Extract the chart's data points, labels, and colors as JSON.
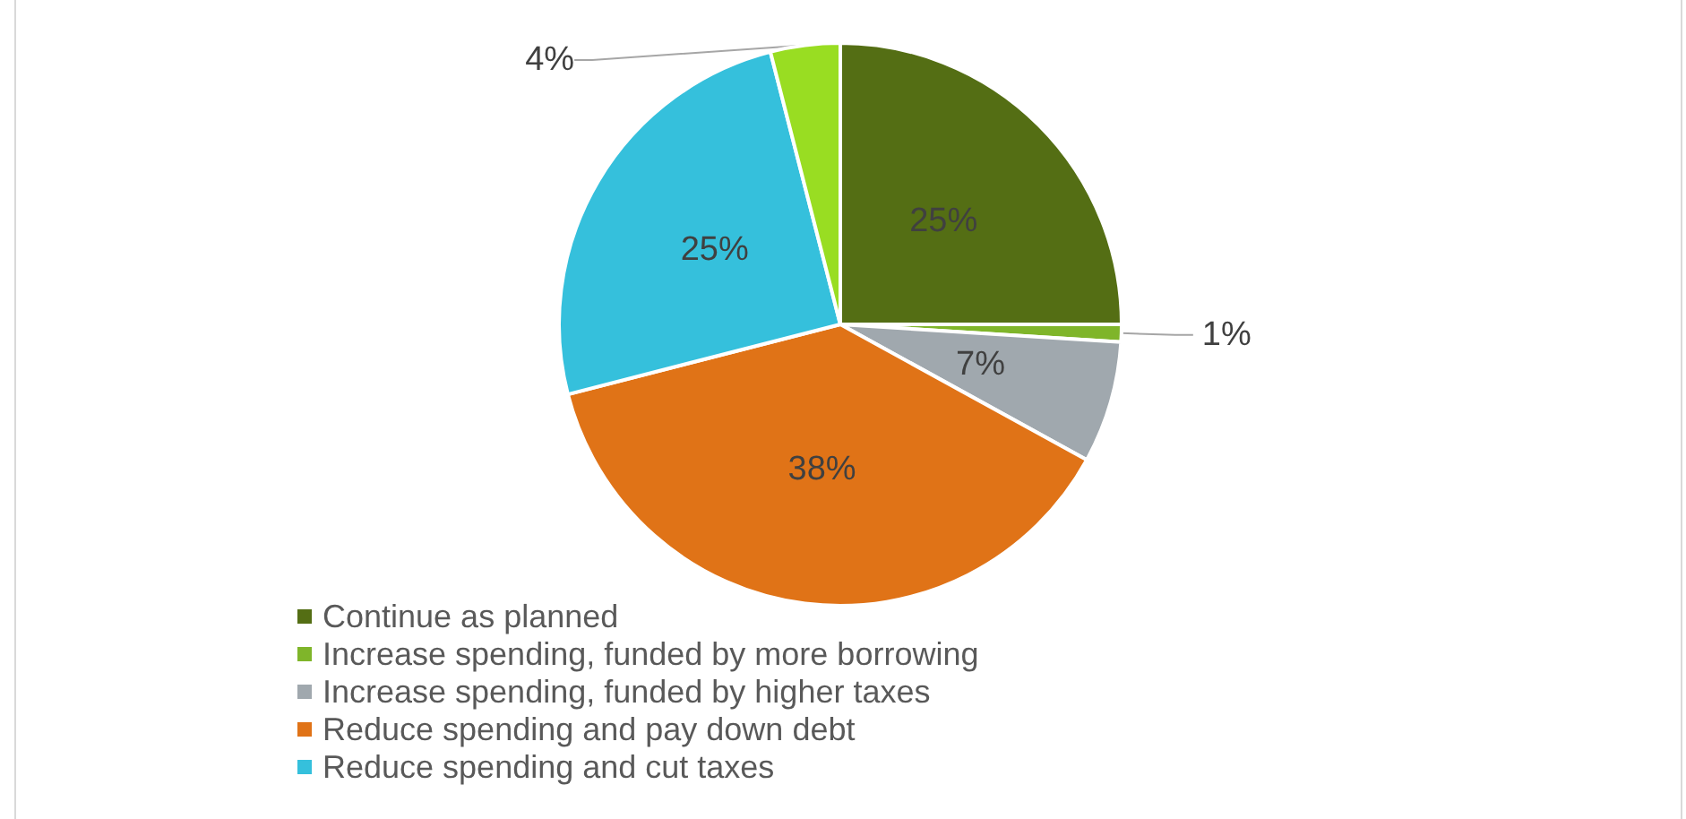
{
  "chart_data": {
    "type": "pie",
    "categories": [
      "Continue as planned",
      "Increase spending, funded by more borrowing",
      "Increase spending, funded by higher taxes",
      "Reduce spending and pay down debt",
      "Reduce spending and cut taxes",
      null
    ],
    "values": [
      25,
      1,
      7,
      38,
      25,
      4
    ],
    "value_labels": [
      "25%",
      "1%",
      "7%",
      "38%",
      "25%",
      "4%"
    ],
    "colors": [
      "#546e14",
      "#7fb52a",
      "#a0a8ae",
      "#e07317",
      "#35c0dc",
      "#99dd22"
    ],
    "legend": "bottom"
  }
}
